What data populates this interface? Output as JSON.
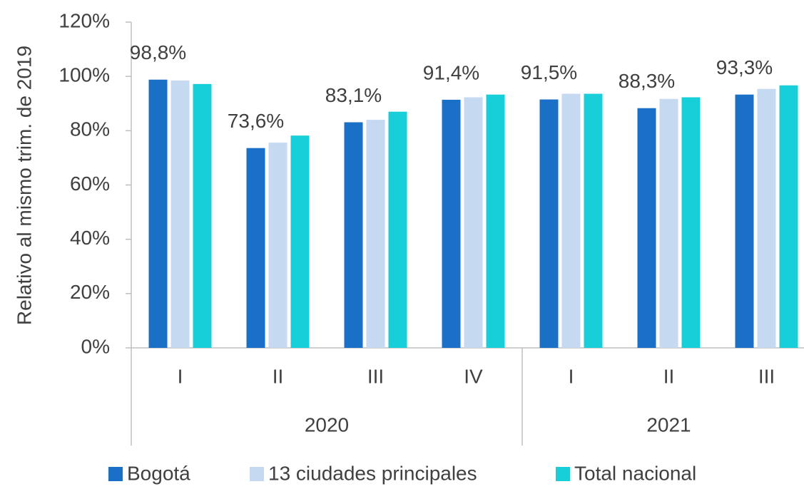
{
  "chart_data": {
    "type": "bar",
    "y_axis_label": "Relativo al mismo trim. de 2019",
    "category_groups": [
      {
        "name": "2020",
        "categories": [
          "I",
          "II",
          "III",
          "IV"
        ]
      },
      {
        "name": "2021",
        "categories": [
          "I",
          "II",
          "III"
        ]
      }
    ],
    "series": [
      {
        "name": "Bogotá",
        "color": "#1a6fc7",
        "values": [
          98.8,
          73.6,
          83.1,
          91.4,
          91.5,
          88.3,
          93.3
        ],
        "value_labels": [
          "98,8%",
          "73,6%",
          "83,1%",
          "91,4%",
          "91,5%",
          "88,3%",
          "93,3%"
        ]
      },
      {
        "name": "13 ciudades principales",
        "color": "#c5d9f1",
        "values": [
          98.5,
          75.6,
          84.0,
          92.3,
          93.6,
          91.7,
          95.4
        ]
      },
      {
        "name": "Total nacional",
        "color": "#17cfd9",
        "values": [
          97.2,
          78.2,
          87.0,
          93.3,
          93.6,
          92.3,
          96.7
        ]
      }
    ],
    "ylim": [
      0,
      120
    ],
    "yticks": [
      {
        "value": 0,
        "label": "0%"
      },
      {
        "value": 20,
        "label": "20%"
      },
      {
        "value": 40,
        "label": "40%"
      },
      {
        "value": 60,
        "label": "60%"
      },
      {
        "value": 80,
        "label": "80%"
      },
      {
        "value": 100,
        "label": "100%"
      },
      {
        "value": 120,
        "label": "120%"
      }
    ],
    "grid": false
  }
}
